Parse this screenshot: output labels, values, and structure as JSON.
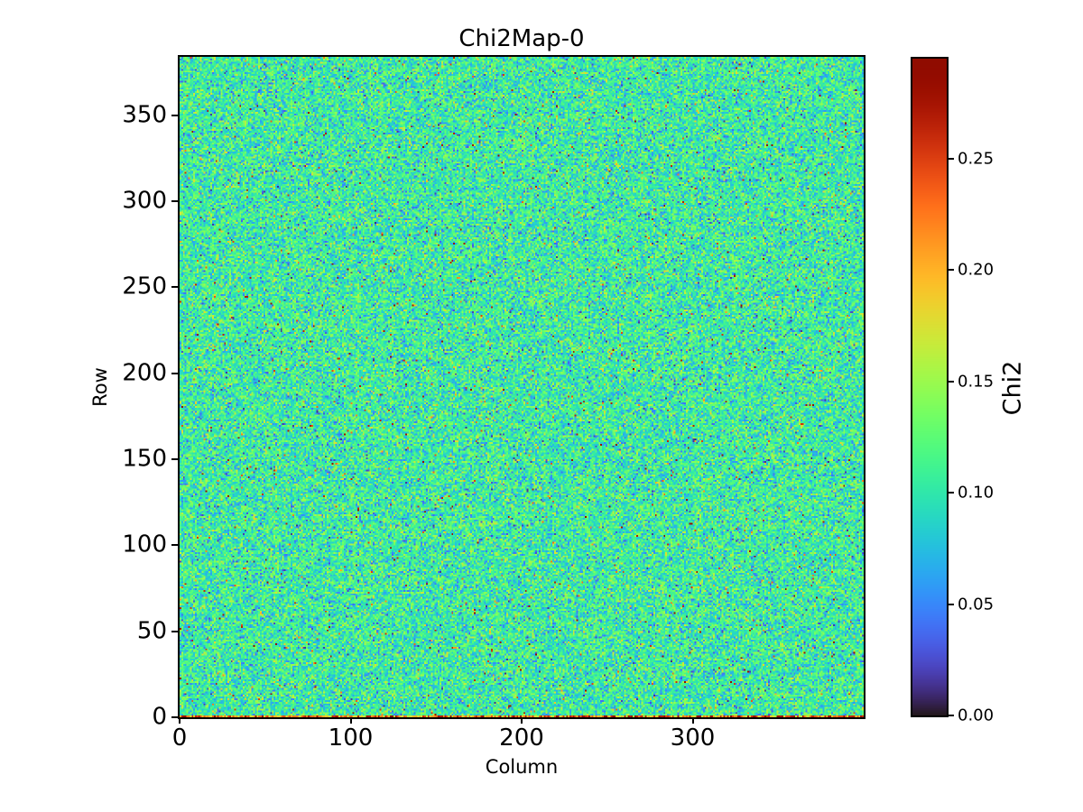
{
  "figure": {
    "background": "#ffffff",
    "text_color": "#000000"
  },
  "chart_data": {
    "type": "heatmap",
    "title": "Chi2Map-0",
    "xlabel": "Column",
    "ylabel": "Row",
    "colorbar_label": "Chi2",
    "colormap": "turbo",
    "n_cols": 400,
    "n_rows": 384,
    "xlim": [
      0,
      400
    ],
    "ylim": [
      0,
      384
    ],
    "x_ticks": [
      0,
      100,
      200,
      300
    ],
    "y_ticks": [
      0,
      50,
      100,
      150,
      200,
      250,
      300,
      350
    ],
    "colorbar_ticks": [
      "0.00",
      "0.05",
      "0.10",
      "0.15",
      "0.20",
      "0.25"
    ],
    "vmin": 0.0,
    "vmax": 0.295,
    "grid": false,
    "legend": "colorbar-right",
    "value_stats": {
      "description": "iid per-pixel chi2 noise, uniform speckle over whole map",
      "mean_chi2": 0.106,
      "std_chi2": 0.03,
      "high_outlier_fraction": 0.006,
      "high_outlier_range": [
        0.21,
        0.295
      ],
      "low_outlier_fraction": 0.008,
      "low_outlier_range": [
        0.01,
        0.05
      ],
      "bottom_row_anomaly": "row 0 has elevated chi2 (yellow-orange-red band)",
      "bottom_row_range": [
        0.155,
        0.295
      ],
      "seed": 42
    }
  }
}
